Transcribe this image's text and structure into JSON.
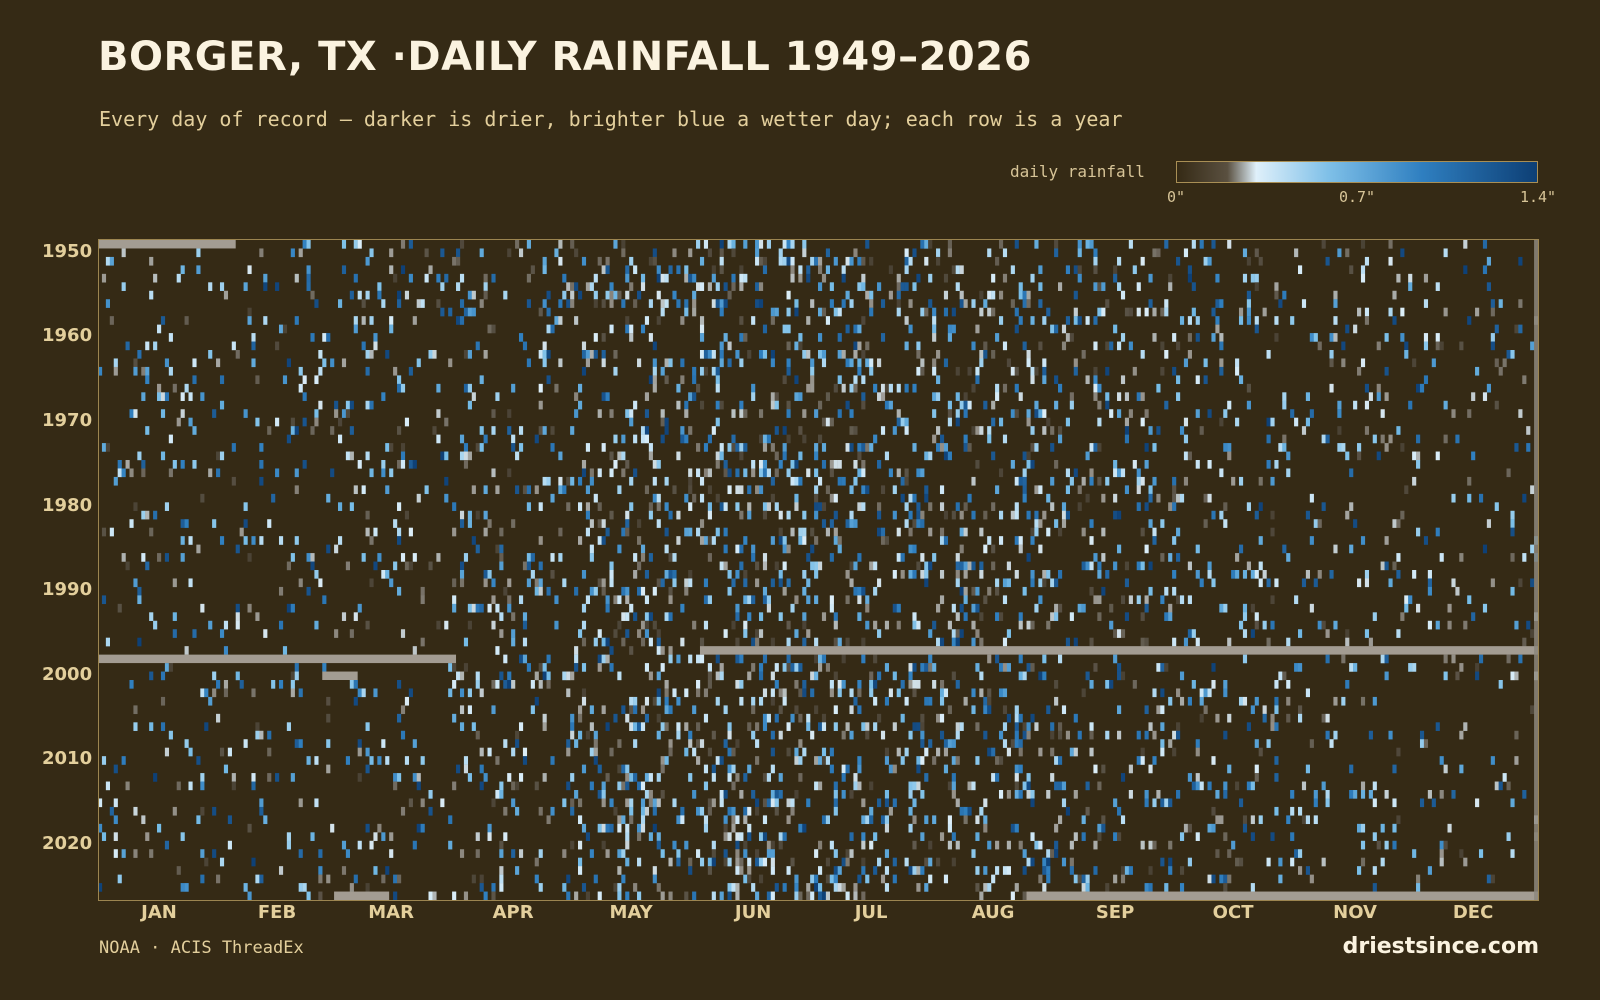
{
  "header": {
    "title": "BORGER, TX ·DAILY RAINFALL 1949–2026",
    "subtitle": "Every day of record — darker is drier, brighter blue a wetter day; each row is a year"
  },
  "legend": {
    "label": "daily rainfall",
    "ticks": [
      {
        "label": "0\"",
        "value": 0
      },
      {
        "label": "0.7\"",
        "value": 0.7
      },
      {
        "label": "1.4\"",
        "value": 1.4
      }
    ],
    "gradient_colors": [
      "#352a15",
      "#5a5040",
      "#dff0fa",
      "#7fc0e8",
      "#2f7fc0",
      "#0d3f75"
    ]
  },
  "colors": {
    "background": "#352a15",
    "missing": "#a39c92",
    "frame": "#9c8550",
    "text": "#e3cf9c"
  },
  "chart_data": {
    "type": "heatmap",
    "title": "BORGER, TX ·DAILY RAINFALL 1949–2026",
    "subtitle": "Every day of record — darker is drier, brighter blue a wetter day; each row is a year",
    "x_unit": "day of year",
    "y_unit": "year",
    "year_range": [
      1949,
      2026
    ],
    "year_ticks": [
      1950,
      1960,
      1970,
      1980,
      1990,
      2000,
      2010,
      2020
    ],
    "month_ticks": [
      {
        "label": "JAN",
        "day": 16
      },
      {
        "label": "FEB",
        "day": 46
      },
      {
        "label": "MAR",
        "day": 75
      },
      {
        "label": "APR",
        "day": 106
      },
      {
        "label": "MAY",
        "day": 136
      },
      {
        "label": "JUN",
        "day": 167
      },
      {
        "label": "JUL",
        "day": 197
      },
      {
        "label": "AUG",
        "day": 228
      },
      {
        "label": "SEP",
        "day": 259
      },
      {
        "label": "OCT",
        "day": 289
      },
      {
        "label": "NOV",
        "day": 320
      },
      {
        "label": "DEC",
        "day": 350
      }
    ],
    "value_range_in": [
      0,
      1.4
    ],
    "legend_label": "daily rainfall",
    "missing_periods": [
      {
        "year": 1949,
        "start_day": 1,
        "end_day": 35
      },
      {
        "year": 1997,
        "start_day": 154,
        "end_day": 366
      },
      {
        "year": 1998,
        "start_day": 1,
        "end_day": 91
      },
      {
        "year": 2000,
        "start_day": 58,
        "end_day": 66
      },
      {
        "year": 2026,
        "start_day": 61,
        "end_day": 74
      },
      {
        "year": 2026,
        "start_day": 237,
        "end_day": 366
      }
    ],
    "seasonal_wet_day_probability": [
      0.07,
      0.07,
      0.09,
      0.12,
      0.18,
      0.22,
      0.19,
      0.2,
      0.15,
      0.12,
      0.08,
      0.07
    ]
  },
  "footer": {
    "source": "NOAA · ACIS ThreadEx",
    "site": "driestsince.com"
  }
}
